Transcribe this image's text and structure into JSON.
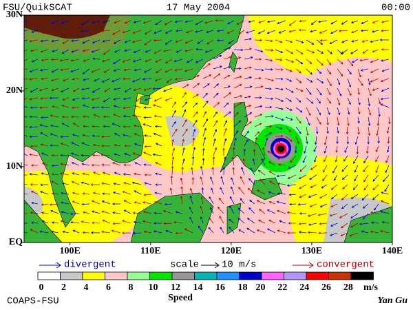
{
  "header": {
    "left": "FSU/QuikSCAT",
    "center": "17 May 2004",
    "right": "00:00"
  },
  "map": {
    "lat_range": [
      0,
      30
    ],
    "lon_range": [
      94.3,
      140
    ],
    "lat_ticks": [
      {
        "value": 30,
        "label": "30N"
      },
      {
        "value": 20,
        "label": "20N"
      },
      {
        "value": 10,
        "label": "10N"
      },
      {
        "value": 0,
        "label": "EQ"
      }
    ],
    "lon_ticks": [
      {
        "value": 100,
        "label": "100E"
      },
      {
        "value": 110,
        "label": "110E"
      },
      {
        "value": 120,
        "label": "120E"
      },
      {
        "value": 130,
        "label": "130E"
      },
      {
        "value": 140,
        "label": "140E"
      }
    ]
  },
  "legend": {
    "divergent": "divergent",
    "scale": "scale",
    "scale_value": "10 m/s",
    "convergent": "convergent"
  },
  "colorbar": {
    "labels": [
      0,
      2,
      4,
      6,
      8,
      10,
      12,
      14,
      16,
      18,
      20,
      22,
      24,
      26,
      28
    ],
    "unit": "m/s",
    "title": "Speed",
    "colors": [
      "#ffffff",
      "#c8c8c8",
      "#ffff00",
      "#ffc8c8",
      "#96ff96",
      "#00e600",
      "#969696",
      "#00b4b4",
      "#1e90ff",
      "#0000cd",
      "#ff64ff",
      "#b496ff",
      "#ff0000",
      "#c83200",
      "#000000"
    ]
  },
  "footer": {
    "left": "COAPS-FSU",
    "right": "Yan Gu"
  }
}
